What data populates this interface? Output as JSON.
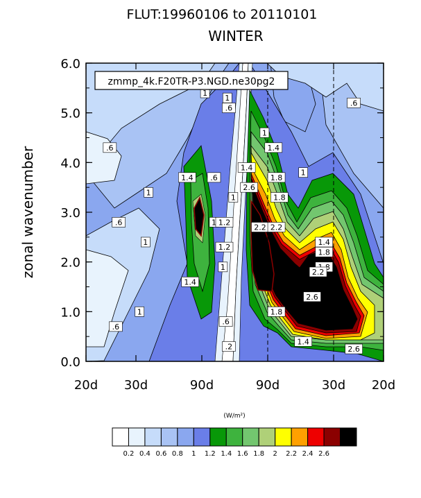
{
  "chart_data": {
    "type": "heatmap",
    "title": "FLUT:19960106 to 20110101",
    "subtitle": "WINTER",
    "annotation": "zmmp_4k.F20TR-P3.NGD.ne30pg2",
    "xlabel": "",
    "ylabel": "zonal wavenumber",
    "x_tick_labels": [
      "20d",
      "30d",
      "90d",
      "90d",
      "30d",
      "20d"
    ],
    "y_ticks": [
      0.0,
      1.0,
      2.0,
      3.0,
      4.0,
      5.0,
      6.0
    ],
    "y_tick_labels": [
      "0.0",
      "1.0",
      "2.0",
      "3.0",
      "4.0",
      "5.0",
      "6.0"
    ],
    "ylim": [
      0,
      6
    ],
    "colorbar": {
      "units": "(W/m²)",
      "levels": [
        "0.2",
        "0.4",
        "0.6",
        "0.8",
        "1",
        "1.2",
        "1.4",
        "1.6",
        "1.8",
        "2",
        "2.2",
        "2.4",
        "2.6"
      ],
      "colors": [
        "#ffffff",
        "#e8f3fd",
        "#c6dcfa",
        "#a9c3f4",
        "#8aa7ef",
        "#6a7ee8",
        "#089808",
        "#3eb33e",
        "#73c66f",
        "#afd078",
        "#ffff00",
        "#ffa000",
        "#ee0000",
        "#8b0000",
        "#000000"
      ]
    },
    "contour_labels": [
      {
        "text": ".6",
        "x": -0.42,
        "y": 4.3
      },
      {
        "text": "1",
        "x": -0.29,
        "y": 3.4
      },
      {
        "text": ".6",
        "x": -0.39,
        "y": 2.8
      },
      {
        "text": "1",
        "x": -0.3,
        "y": 2.4
      },
      {
        "text": "1",
        "x": -0.32,
        "y": 1.0
      },
      {
        "text": ".6",
        "x": -0.4,
        "y": 0.7
      },
      {
        "text": "1.4",
        "x": -0.16,
        "y": 3.7
      },
      {
        "text": "1.4",
        "x": -0.15,
        "y": 1.6
      },
      {
        "text": ".6",
        "x": -0.07,
        "y": 3.7
      },
      {
        "text": "1",
        "x": -0.07,
        "y": 2.8
      },
      {
        "text": "1.2",
        "x": -0.035,
        "y": 2.8
      },
      {
        "text": "1",
        "x": -0.005,
        "y": 3.3
      },
      {
        "text": "1.2",
        "x": -0.035,
        "y": 2.3
      },
      {
        "text": "1",
        "x": -0.04,
        "y": 1.9
      },
      {
        "text": ".6",
        "x": -0.03,
        "y": 0.8
      },
      {
        "text": ".2",
        "x": -0.02,
        "y": 0.3
      },
      {
        "text": "1",
        "x": -0.1,
        "y": 5.4
      },
      {
        "text": ".6",
        "x": -0.02,
        "y": 5.1
      },
      {
        "text": "1",
        "x": -0.025,
        "y": 5.3
      },
      {
        "text": "1.4",
        "x": 0.04,
        "y": 3.9
      },
      {
        "text": "2.6",
        "x": 0.048,
        "y": 3.5
      },
      {
        "text": "1",
        "x": 0.1,
        "y": 4.6
      },
      {
        "text": "1.4",
        "x": 0.13,
        "y": 4.3
      },
      {
        "text": "1.8",
        "x": 0.14,
        "y": 3.7
      },
      {
        "text": "1.8",
        "x": 0.15,
        "y": 3.3
      },
      {
        "text": "2.2",
        "x": 0.085,
        "y": 2.7
      },
      {
        "text": "2.2",
        "x": 0.14,
        "y": 2.7
      },
      {
        "text": "1",
        "x": 0.23,
        "y": 3.8
      },
      {
        "text": "1.4",
        "x": 0.3,
        "y": 2.4
      },
      {
        "text": "1.8",
        "x": 0.3,
        "y": 2.2
      },
      {
        "text": "1.8",
        "x": 0.3,
        "y": 1.9
      },
      {
        "text": "2.2",
        "x": 0.28,
        "y": 1.8
      },
      {
        "text": "2.6",
        "x": 0.26,
        "y": 1.3
      },
      {
        "text": "1.8",
        "x": 0.14,
        "y": 1.0
      },
      {
        "text": "1.4",
        "x": 0.23,
        "y": 0.4
      },
      {
        "text": "2.6",
        "x": 0.4,
        "y": 0.25
      },
      {
        "text": "2.2",
        "x": 0.6,
        "y": 0.25
      },
      {
        "text": ".6",
        "x": 0.4,
        "y": 5.2
      },
      {
        "text": "1",
        "x": 0.57,
        "y": 4.2
      },
      {
        "text": "2.2",
        "x": 0.53,
        "y": 2.4
      },
      {
        "text": "2.6",
        "x": 0.52,
        "y": 1.8
      },
      {
        "text": "2.6",
        "x": 0.55,
        "y": 1.7
      },
      {
        "text": "1.4",
        "x": 0.77,
        "y": 3.0
      },
      {
        "text": "1.8",
        "x": 0.9,
        "y": 1.2
      }
    ]
  }
}
